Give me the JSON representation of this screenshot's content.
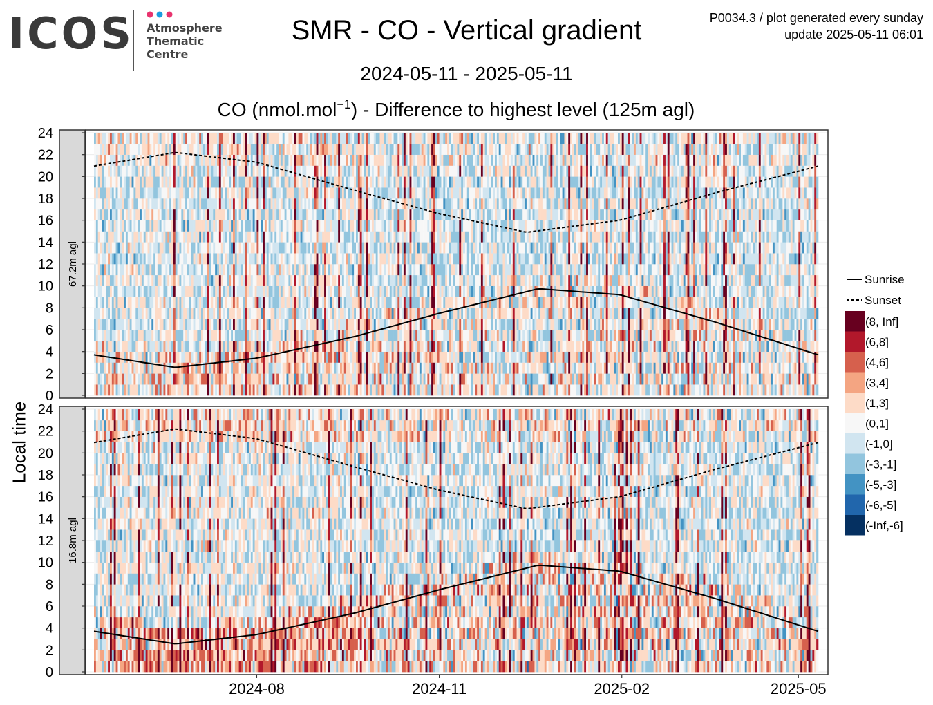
{
  "header": {
    "logo_text": "ICOS",
    "logo_lines": [
      "Atmosphere",
      "Thematic",
      "Centre"
    ],
    "logo_dot_colors": [
      "#e8336e",
      "#1a9de0",
      "#e8336e"
    ],
    "plot_id": "P0034.3 / plot generated every sunday",
    "update": "update  2025-05-11 06:01"
  },
  "chart_data": {
    "type": "heatmap",
    "title": "SMR - CO - Vertical gradient",
    "subtitle": "2024-05-11 - 2025-05-11",
    "panel_title_pre": "CO (nmol.mol",
    "panel_title_sup": "−1",
    "panel_title_post": ") - Difference to highest level (125m agl)",
    "ylabel": "Local time",
    "xlim": [
      "2024-05-11",
      "2025-05-11"
    ],
    "ylim": [
      0,
      24
    ],
    "x_ticks": [
      {
        "date": "2024-08-01",
        "label": "2024-08"
      },
      {
        "date": "2024-11-01",
        "label": "2024-11"
      },
      {
        "date": "2025-02-01",
        "label": "2025-02"
      },
      {
        "date": "2025-05-01",
        "label": "2025-05"
      }
    ],
    "y_ticks": [
      0,
      2,
      4,
      6,
      8,
      10,
      12,
      14,
      16,
      18,
      20,
      22,
      24
    ],
    "panels": [
      {
        "label": "67.2m agl",
        "intensity": 0.55
      },
      {
        "label": "16.8m agl",
        "intensity": 1.0
      }
    ],
    "sunrise": {
      "name": "Sunrise",
      "points": [
        [
          "2024-05-11",
          3.7
        ],
        [
          "2024-06-21",
          2.55
        ],
        [
          "2024-08-01",
          3.4
        ],
        [
          "2024-09-20",
          5.4
        ],
        [
          "2024-11-01",
          7.5
        ],
        [
          "2024-12-21",
          9.75
        ],
        [
          "2025-01-31",
          9.2
        ],
        [
          "2025-03-20",
          6.7
        ],
        [
          "2025-05-11",
          3.7
        ]
      ]
    },
    "sunset": {
      "name": "Sunset",
      "points": [
        [
          "2024-05-11",
          20.95
        ],
        [
          "2024-06-21",
          22.2
        ],
        [
          "2024-08-01",
          21.3
        ],
        [
          "2024-09-20",
          18.7
        ],
        [
          "2024-11-01",
          16.6
        ],
        [
          "2024-12-15",
          14.9
        ],
        [
          "2025-01-31",
          16.0
        ],
        [
          "2025-03-20",
          18.5
        ],
        [
          "2025-05-11",
          20.95
        ]
      ]
    },
    "legend": [
      {
        "label": "(8, Inf]",
        "color": "#67001f"
      },
      {
        "label": "(6,8]",
        "color": "#b2182b"
      },
      {
        "label": "(4,6]",
        "color": "#d6604d"
      },
      {
        "label": "(3,4]",
        "color": "#f4a582"
      },
      {
        "label": "(1,3]",
        "color": "#fddbc7"
      },
      {
        "label": "(0,1]",
        "color": "#f7f7f7"
      },
      {
        "label": "(-1,0]",
        "color": "#d1e5f0"
      },
      {
        "label": "(-3,-1]",
        "color": "#92c5de"
      },
      {
        "label": "(-5,-3]",
        "color": "#4393c3"
      },
      {
        "label": "(-6,-5]",
        "color": "#2166ac"
      },
      {
        "label": "(-Inf,-6]",
        "color": "#053061"
      }
    ],
    "grid": true,
    "legend_position": "right"
  }
}
